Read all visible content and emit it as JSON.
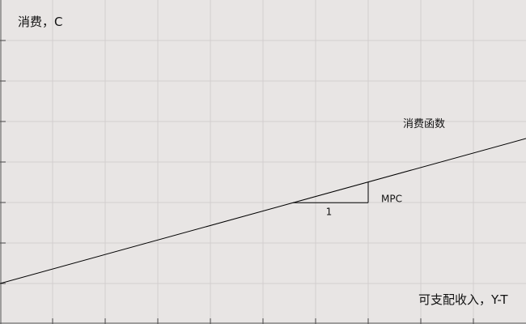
{
  "chart_data": {
    "type": "line",
    "ylabel": "消费，C",
    "xlabel": "可支配收入，Y-T",
    "grid": true,
    "series": [
      {
        "name": "消费函数",
        "x": [
          0,
          650
        ],
        "y": [
          50,
          229
        ]
      }
    ],
    "annotations": {
      "run_label": "1",
      "rise_label": "MPC",
      "run_x": [
        362,
        455
      ]
    }
  }
}
